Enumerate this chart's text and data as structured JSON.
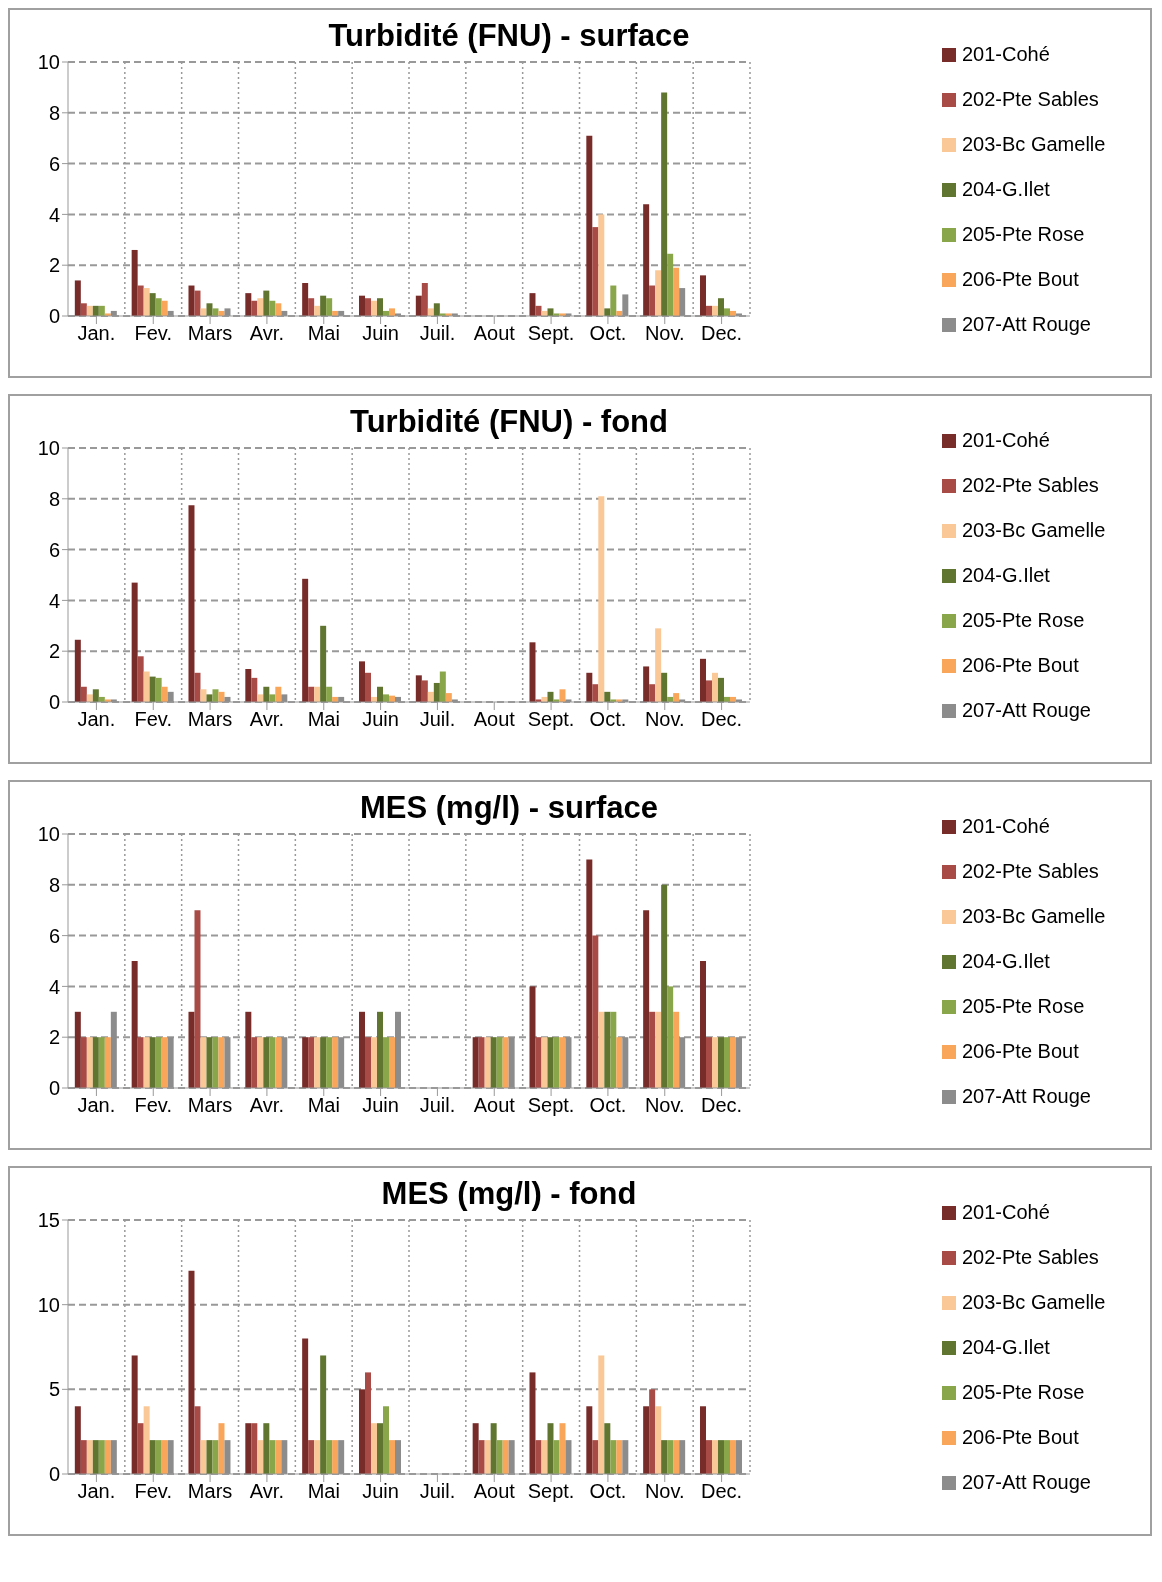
{
  "chart_data": [
    {
      "type": "bar",
      "title": "Turbidité (FNU) - surface",
      "categories": [
        "Jan.",
        "Fev.",
        "Mars",
        "Avr.",
        "Mai",
        "Juin",
        "Juil.",
        "Aout",
        "Sept.",
        "Oct.",
        "Nov.",
        "Dec."
      ],
      "ylim": [
        0,
        10
      ],
      "yticks": [
        0,
        2,
        4,
        6,
        8,
        10
      ],
      "grid": true,
      "legend": "right",
      "series": [
        {
          "name": "201-Cohé",
          "color": "#772c2a",
          "values": [
            1.4,
            2.6,
            1.2,
            0.9,
            1.3,
            0.8,
            0.8,
            null,
            0.9,
            7.1,
            4.4,
            1.6
          ]
        },
        {
          "name": "202-Pte Sables",
          "color": "#a84a45",
          "values": [
            0.5,
            1.2,
            1.0,
            0.6,
            0.7,
            0.7,
            1.3,
            null,
            0.4,
            3.5,
            1.2,
            0.4
          ]
        },
        {
          "name": "203-Bc Gamelle",
          "color": "#fac896",
          "values": [
            0.4,
            1.1,
            0.3,
            0.7,
            0.4,
            0.6,
            0.3,
            null,
            0.2,
            4.0,
            1.8,
            0.4
          ]
        },
        {
          "name": "204-G.Ilet",
          "color": "#5f7530",
          "values": [
            0.4,
            0.9,
            0.5,
            1.0,
            0.8,
            0.7,
            0.5,
            null,
            0.3,
            0.3,
            8.8,
            0.7
          ]
        },
        {
          "name": "205-Pte Rose",
          "color": "#8aa64a",
          "values": [
            0.4,
            0.7,
            0.3,
            0.6,
            0.7,
            0.2,
            0.1,
            null,
            0.1,
            1.2,
            2.45,
            0.3
          ]
        },
        {
          "name": "206-Pte Bout",
          "color": "#f9a55a",
          "values": [
            0.1,
            0.6,
            0.2,
            0.5,
            0.2,
            0.3,
            0.1,
            null,
            0.1,
            0.2,
            1.9,
            0.2
          ]
        },
        {
          "name": "207-Att Rouge",
          "color": "#8c8c8c",
          "values": [
            0.2,
            0.2,
            0.3,
            0.2,
            0.2,
            0.1,
            0.1,
            null,
            0.1,
            0.85,
            1.1,
            0.1
          ]
        }
      ]
    },
    {
      "type": "bar",
      "title": "Turbidité (FNU) - fond",
      "categories": [
        "Jan.",
        "Fev.",
        "Mars",
        "Avr.",
        "Mai",
        "Juin",
        "Juil.",
        "Aout",
        "Sept.",
        "Oct.",
        "Nov.",
        "Dec."
      ],
      "ylim": [
        0,
        10
      ],
      "yticks": [
        0,
        2,
        4,
        6,
        8,
        10
      ],
      "grid": true,
      "legend": "right",
      "series": [
        {
          "name": "201-Cohé",
          "color": "#772c2a",
          "values": [
            2.45,
            4.7,
            7.75,
            1.3,
            4.85,
            1.6,
            1.05,
            null,
            2.35,
            1.15,
            1.4,
            1.7
          ]
        },
        {
          "name": "202-Pte Sables",
          "color": "#a84a45",
          "values": [
            0.6,
            1.8,
            1.15,
            0.95,
            0.6,
            1.15,
            0.85,
            null,
            0.1,
            0.7,
            0.7,
            0.85
          ]
        },
        {
          "name": "203-Bc Gamelle",
          "color": "#fac896",
          "values": [
            0.3,
            1.2,
            0.5,
            0.3,
            0.6,
            0.2,
            0.4,
            null,
            0.2,
            8.1,
            2.9,
            1.15
          ]
        },
        {
          "name": "204-G.Ilet",
          "color": "#5f7530",
          "values": [
            0.5,
            1.0,
            0.3,
            0.6,
            3.0,
            0.6,
            0.75,
            null,
            0.4,
            0.4,
            1.15,
            0.95
          ]
        },
        {
          "name": "205-Pte Rose",
          "color": "#8aa64a",
          "values": [
            0.2,
            0.95,
            0.5,
            0.3,
            0.6,
            0.3,
            1.2,
            null,
            0.1,
            0.1,
            0.2,
            0.2
          ]
        },
        {
          "name": "206-Pte Bout",
          "color": "#f9a55a",
          "values": [
            0.1,
            0.6,
            0.4,
            0.6,
            0.2,
            0.25,
            0.35,
            null,
            0.5,
            0.1,
            0.35,
            0.2
          ]
        },
        {
          "name": "207-Att Rouge",
          "color": "#8c8c8c",
          "values": [
            0.1,
            0.4,
            0.2,
            0.3,
            0.2,
            0.2,
            0.1,
            null,
            0.1,
            0.1,
            0.1,
            0.1
          ]
        }
      ]
    },
    {
      "type": "bar",
      "title": "MES (mg/l) - surface",
      "categories": [
        "Jan.",
        "Fev.",
        "Mars",
        "Avr.",
        "Mai",
        "Juin",
        "Juil.",
        "Aout",
        "Sept.",
        "Oct.",
        "Nov.",
        "Dec."
      ],
      "ylim": [
        0,
        10
      ],
      "yticks": [
        0,
        2,
        4,
        6,
        8,
        10
      ],
      "grid": true,
      "legend": "right",
      "series": [
        {
          "name": "201-Cohé",
          "color": "#772c2a",
          "values": [
            3,
            5,
            3,
            3,
            2,
            3,
            null,
            2,
            4,
            9,
            7,
            5
          ]
        },
        {
          "name": "202-Pte Sables",
          "color": "#a84a45",
          "values": [
            2,
            2,
            7,
            2,
            2,
            2,
            null,
            2,
            2,
            6,
            3,
            2
          ]
        },
        {
          "name": "203-Bc Gamelle",
          "color": "#fac896",
          "values": [
            2,
            2,
            2,
            2,
            2,
            2,
            null,
            2,
            2,
            3,
            3,
            2
          ]
        },
        {
          "name": "204-G.Ilet",
          "color": "#5f7530",
          "values": [
            2,
            2,
            2,
            2,
            2,
            3,
            null,
            2,
            2,
            3,
            8,
            2
          ]
        },
        {
          "name": "205-Pte Rose",
          "color": "#8aa64a",
          "values": [
            2,
            2,
            2,
            2,
            2,
            2,
            null,
            2,
            2,
            3,
            4,
            2
          ]
        },
        {
          "name": "206-Pte Bout",
          "color": "#f9a55a",
          "values": [
            2,
            2,
            2,
            2,
            2,
            2,
            null,
            2,
            2,
            2,
            3,
            2
          ]
        },
        {
          "name": "207-Att Rouge",
          "color": "#8c8c8c",
          "values": [
            3,
            2,
            2,
            2,
            2,
            3,
            null,
            2,
            2,
            2,
            2,
            2
          ]
        }
      ]
    },
    {
      "type": "bar",
      "title": "MES (mg/l) - fond",
      "categories": [
        "Jan.",
        "Fev.",
        "Mars",
        "Avr.",
        "Mai",
        "Juin",
        "Juil.",
        "Aout",
        "Sept.",
        "Oct.",
        "Nov.",
        "Dec."
      ],
      "ylim": [
        0,
        15
      ],
      "yticks": [
        0,
        5,
        10,
        15
      ],
      "grid": true,
      "legend": "right",
      "series": [
        {
          "name": "201-Cohé",
          "color": "#772c2a",
          "values": [
            4,
            7,
            12,
            3,
            8,
            5,
            null,
            3,
            6,
            4,
            4,
            4
          ]
        },
        {
          "name": "202-Pte Sables",
          "color": "#a84a45",
          "values": [
            2,
            3,
            4,
            3,
            2,
            6,
            null,
            2,
            2,
            2,
            5,
            2
          ]
        },
        {
          "name": "203-Bc Gamelle",
          "color": "#fac896",
          "values": [
            2,
            4,
            2,
            2,
            2,
            3,
            null,
            2,
            2,
            7,
            4,
            2
          ]
        },
        {
          "name": "204-G.Ilet",
          "color": "#5f7530",
          "values": [
            2,
            2,
            2,
            3,
            7,
            3,
            null,
            3,
            3,
            3,
            2,
            2
          ]
        },
        {
          "name": "205-Pte Rose",
          "color": "#8aa64a",
          "values": [
            2,
            2,
            2,
            2,
            2,
            4,
            null,
            2,
            2,
            2,
            2,
            2
          ]
        },
        {
          "name": "206-Pte Bout",
          "color": "#f9a55a",
          "values": [
            2,
            2,
            3,
            2,
            2,
            2,
            null,
            2,
            3,
            2,
            2,
            2
          ]
        },
        {
          "name": "207-Att Rouge",
          "color": "#8c8c8c",
          "values": [
            2,
            2,
            2,
            2,
            2,
            2,
            null,
            2,
            2,
            2,
            2,
            2
          ]
        }
      ]
    }
  ]
}
